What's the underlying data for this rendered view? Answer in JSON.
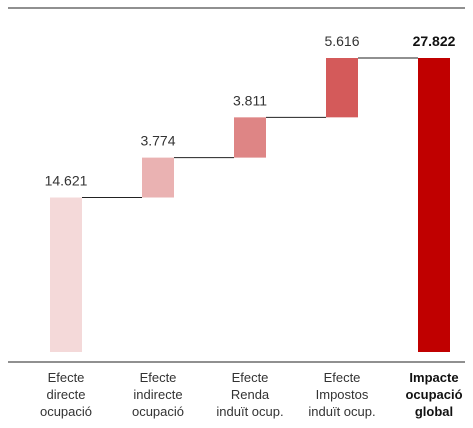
{
  "chart_data": {
    "type": "bar",
    "subtype": "waterfall",
    "title": "",
    "xlabel": "",
    "ylabel": "",
    "ylim": [
      0,
      27822
    ],
    "grid": false,
    "legend": "none",
    "categories": [
      [
        "Efecte",
        "directe",
        "ocupació"
      ],
      [
        "Efecte",
        "indirecte",
        "ocupació"
      ],
      [
        "Efecte",
        "Renda",
        "induït ocup."
      ],
      [
        "Efecte",
        "Impostos",
        "induït ocup."
      ],
      [
        "Impacte",
        "ocupació",
        "global"
      ]
    ],
    "values": [
      14621,
      3774,
      3811,
      5616,
      27822
    ],
    "value_labels": [
      "14.621",
      "3.774",
      "3.811",
      "5.616",
      "27.822"
    ],
    "is_total": [
      false,
      false,
      false,
      false,
      true
    ],
    "colors": [
      "#f4d9d9",
      "#eab2b2",
      "#de8585",
      "#d45a5a",
      "#c00000"
    ],
    "axis_color": "#222222",
    "connector_color": "#222222",
    "label_color": "#333333"
  }
}
